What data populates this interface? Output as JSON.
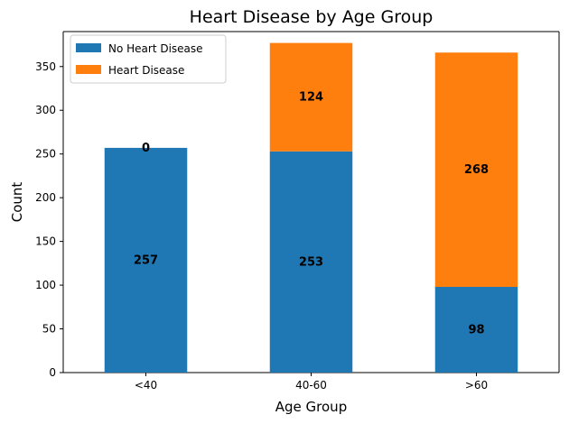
{
  "chart_data": {
    "type": "bar",
    "stacked": true,
    "title": "Heart Disease by Age Group",
    "xlabel": "Age Group",
    "ylabel": "Count",
    "categories": [
      "<40",
      "40-60",
      ">60"
    ],
    "series": [
      {
        "name": "No Heart Disease",
        "values": [
          257,
          253,
          98
        ],
        "color": "#1f77b4"
      },
      {
        "name": "Heart Disease",
        "values": [
          0,
          124,
          268
        ],
        "color": "#ff7f0e"
      }
    ],
    "ylim": [
      0,
      390
    ],
    "yticks": [
      0,
      50,
      100,
      150,
      200,
      250,
      300,
      350
    ],
    "legend": {
      "position": "top-left"
    },
    "grid": false
  }
}
